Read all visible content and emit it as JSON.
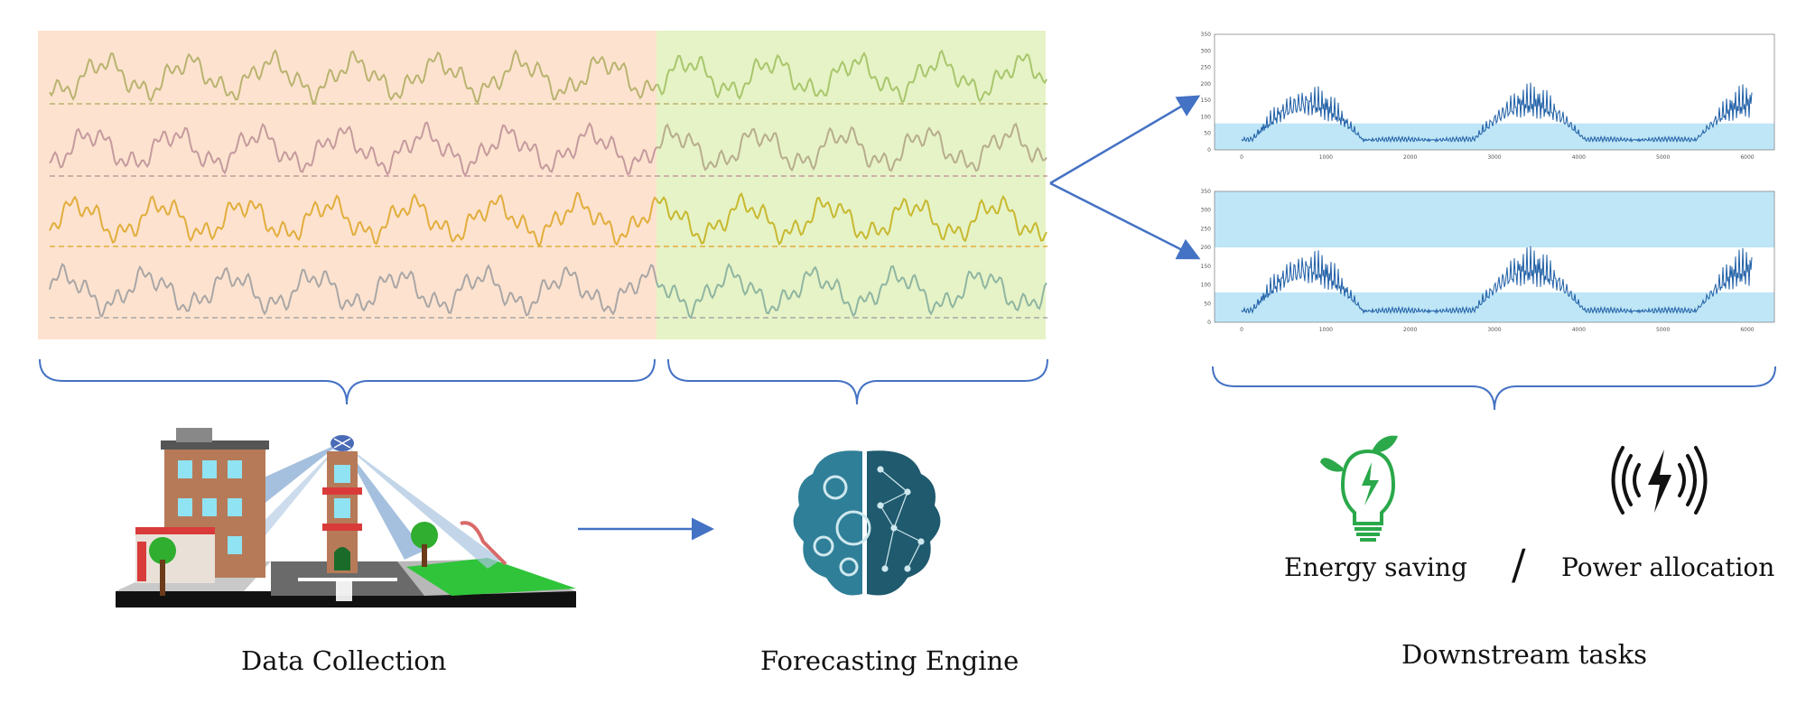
{
  "labels": {
    "data_collection": "Data Collection",
    "forecasting_engine": "Forecasting Engine",
    "downstream_tasks": "Downstream tasks",
    "energy_saving": "Energy saving",
    "separator": "/",
    "power_allocation": "Power allocation"
  },
  "colors": {
    "history_bg": "#fde3cf",
    "forecast_bg": "#e6f3c6",
    "arrow": "#4472c4",
    "brace": "#4472c4",
    "plot_line": "#1f5fa6",
    "band": "#bfe6f7",
    "series": [
      "#b9b370",
      "#c59a9e",
      "#e2ad3c",
      "#a9a6a6"
    ],
    "forecast_series": [
      "#a8c66c",
      "#b7ad8e",
      "#c8b830",
      "#8fb5a2"
    ],
    "bulb": "#2aa84a",
    "brain": "#1f5a6e"
  },
  "icons": {
    "city": "smart-city-icon",
    "brain": "brain-gears-network-icon",
    "bulb": "lightbulb-energy-icon",
    "signal": "wireless-power-icon"
  },
  "plots": [
    {
      "y_ticks": [
        "0",
        "50",
        "100",
        "150",
        "200",
        "250",
        "300",
        "350"
      ],
      "x_ticks": [
        "0",
        "1000",
        "2000",
        "3000",
        "4000",
        "5000",
        "6000"
      ]
    },
    {
      "y_ticks": [
        "0",
        "50",
        "100",
        "150",
        "200",
        "250",
        "300",
        "350"
      ],
      "x_ticks": [
        "0",
        "1000",
        "2000",
        "3000",
        "4000",
        "5000",
        "6000"
      ]
    }
  ]
}
